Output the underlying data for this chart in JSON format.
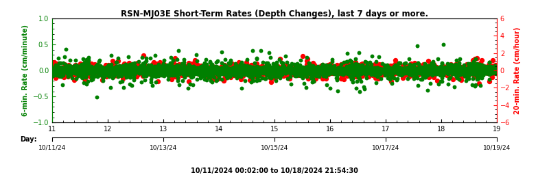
{
  "title": "RSN-MJ03E Short-Term Rates (Depth Changes), last 7 days or more.",
  "ylabel_left": "6-min. Rate (cm/minute)",
  "ylabel_right": "20-min. Rate (cm/hour)",
  "xlabel_day": "Day:",
  "date_label": "10/11/2024 00:02:00 to 10/18/2024 21:54:30",
  "xlim_day": [
    11,
    19
  ],
  "ylim_left": [
    -1.0,
    1.0
  ],
  "ylim_right": [
    -6.0,
    6.0
  ],
  "yticks_left": [
    -1.0,
    -0.5,
    0.0,
    0.5,
    1.0
  ],
  "yticks_right": [
    -6,
    -4,
    -2,
    0,
    2,
    4,
    6
  ],
  "xticks_day": [
    11,
    12,
    13,
    14,
    15,
    16,
    17,
    18,
    19
  ],
  "date_ticks": [
    "10/11/24",
    "10/13/24",
    "10/15/24",
    "10/17/24",
    "10/19/24"
  ],
  "date_tick_positions": [
    11,
    13,
    15,
    17,
    19
  ],
  "green_color": "#008000",
  "red_color": "#ff0000",
  "title_color": "#000000",
  "bg_color": "#ffffff",
  "left_axis_color": "#008000",
  "right_axis_color": "#ff0000",
  "seed": 42,
  "n_green": 6000,
  "n_red": 3000,
  "green_core_std": 0.025,
  "green_outer_std": 0.08,
  "green_outlier_std": 0.18,
  "red_core_std": 0.12,
  "red_outer_std": 0.28,
  "red_outlier_std": 0.55,
  "green_marker_size": 18,
  "red_marker_size": 28,
  "title_fontsize": 8.5,
  "tick_fontsize": 7,
  "ylabel_fontsize": 7
}
